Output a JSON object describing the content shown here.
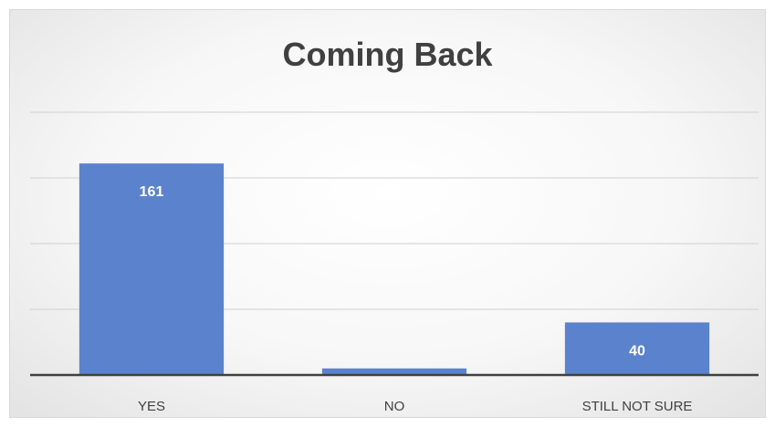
{
  "chart_data": {
    "type": "bar",
    "title": "Coming Back",
    "categories": [
      "YES",
      "NO",
      "STILL NOT SURE"
    ],
    "values": [
      161,
      5,
      40
    ],
    "data_labels": [
      "161",
      "",
      "40"
    ],
    "ylim": [
      0,
      200
    ],
    "gridlines": [
      50,
      100,
      150,
      200
    ],
    "grid": true,
    "legend": "none",
    "bar_color": "#5b83cd"
  }
}
